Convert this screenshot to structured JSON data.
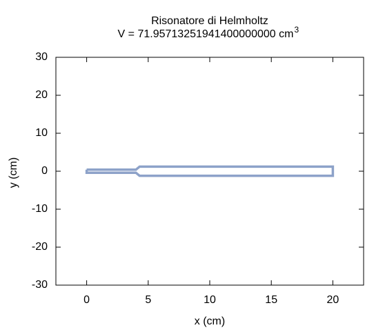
{
  "chart_data": {
    "type": "line",
    "title": "Risonatore di Helmholtz",
    "subtitle": "V = 71.95713251941400000000 cm",
    "subtitle_superscript": "3",
    "x_label": "x (cm)",
    "y_label": "y (cm)",
    "xlim": [
      -2.5,
      22.5
    ],
    "ylim": [
      -30,
      30
    ],
    "xticks": [
      0,
      5,
      10,
      15,
      20
    ],
    "yticks": [
      -30,
      -20,
      -10,
      0,
      10,
      20,
      30
    ],
    "grid": false,
    "series": [
      {
        "color": "#8da2c9",
        "x": [
          0,
          4,
          4.3,
          20,
          20,
          4.3,
          4,
          0,
          0
        ],
        "values": [
          0.4,
          0.4,
          1.2,
          1.2,
          -1.2,
          -1.2,
          -0.4,
          -0.4,
          0.4
        ]
      }
    ]
  }
}
